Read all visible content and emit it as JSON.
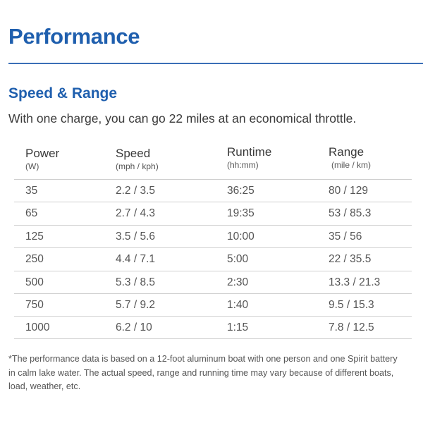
{
  "title": "Performance",
  "subtitle": "Speed & Range",
  "intro": "With one charge, you can go 22 miles at an economical throttle.",
  "table": {
    "headers": [
      {
        "label": "Power",
        "unit": "(W)"
      },
      {
        "label": "Speed",
        "unit": "(mph / kph)"
      },
      {
        "label": "Runtime",
        "unit": "(hh:mm)"
      },
      {
        "label": "Range",
        "unit": "(mile / km)"
      }
    ],
    "rows": [
      [
        "35",
        "2.2 / 3.5",
        "36:25",
        "80 / 129"
      ],
      [
        "65",
        "2.7 / 4.3",
        "19:35",
        "53 / 85.3"
      ],
      [
        "125",
        "3.5 / 5.6",
        "10:00",
        "35 / 56"
      ],
      [
        "250",
        "4.4 / 7.1",
        "5:00",
        "22 / 35.5"
      ],
      [
        "500",
        "5.3 / 8.5",
        "2:30",
        "13.3 / 21.3"
      ],
      [
        "750",
        "5.7 / 9.2",
        "1:40",
        "9.5 / 15.3"
      ],
      [
        "1000",
        "6.2 / 10",
        "1:15",
        "7.8 / 12.5"
      ]
    ]
  },
  "footnote": "*The performance data is based on a 12-foot aluminum boat with one person and one Spirit battery in calm lake water. The actual speed, range and running time may vary because of different boats, load, weather, etc.",
  "colors": {
    "heading": "#1f5fae",
    "rule": "#3a6fb7",
    "text": "#3a3a3a",
    "row_divider": "#cfcfcf"
  }
}
